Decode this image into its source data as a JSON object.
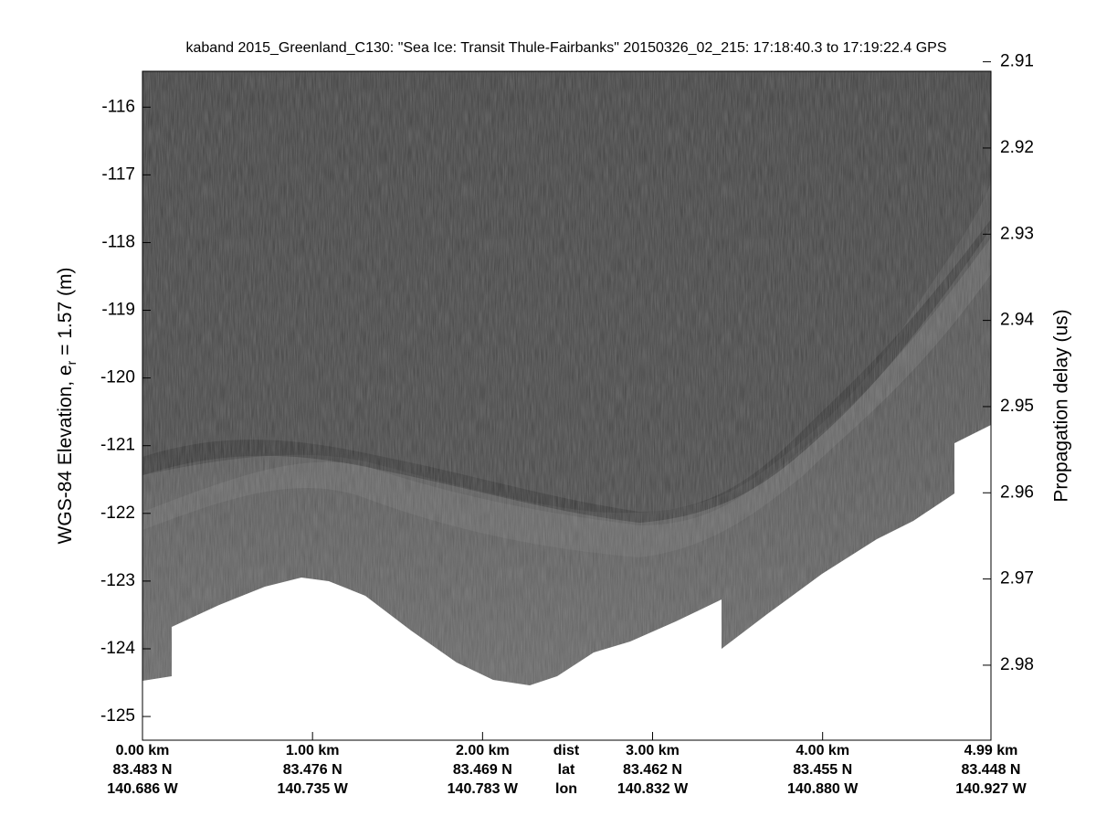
{
  "chart_data": {
    "type": "echogram",
    "title": "kaband 2015_Greenland_C130: \"Sea Ice: Transit Thule-Fairbanks\"  20150326_02_215: 17:18:40.3 to 17:19:22.4 GPS",
    "ylabel": "WGS-84 Elevation, e",
    "ylabel_sub": "r",
    "ylabel_tail": " = 1.57 (m)",
    "y2label": "Propagation delay (us)",
    "ylim": [
      -125.35,
      -115.47
    ],
    "yticks": [
      -125,
      -124,
      -123,
      -122,
      -121,
      -120,
      -119,
      -118,
      -117,
      -116
    ],
    "y2lim": [
      2.9887,
      2.9111
    ],
    "y2ticks": [
      2.91,
      2.92,
      2.93,
      2.94,
      2.95,
      2.96,
      2.97,
      2.98
    ],
    "xlim": [
      0,
      4.99
    ],
    "xticks": [
      {
        "value": 0,
        "label": "0.00 km"
      },
      {
        "value": 1,
        "label": "1.00 km"
      },
      {
        "value": 2,
        "label": "2.00 km"
      },
      {
        "value": 3,
        "label": "3.00 km"
      },
      {
        "value": 4,
        "label": "4.00 km"
      },
      {
        "value": 4.99,
        "label": "4.99 km"
      }
    ],
    "lat_labels": [
      "83.483 N",
      "83.476 N",
      "83.469 N",
      "83.462 N",
      "83.455 N",
      "83.448 N"
    ],
    "lon_labels": [
      "140.686 W",
      "140.735 W",
      "140.783 W",
      "140.832 W",
      "140.880 W",
      "140.927 W"
    ],
    "row_labels": [
      "dist",
      "lat",
      "lon"
    ]
  }
}
